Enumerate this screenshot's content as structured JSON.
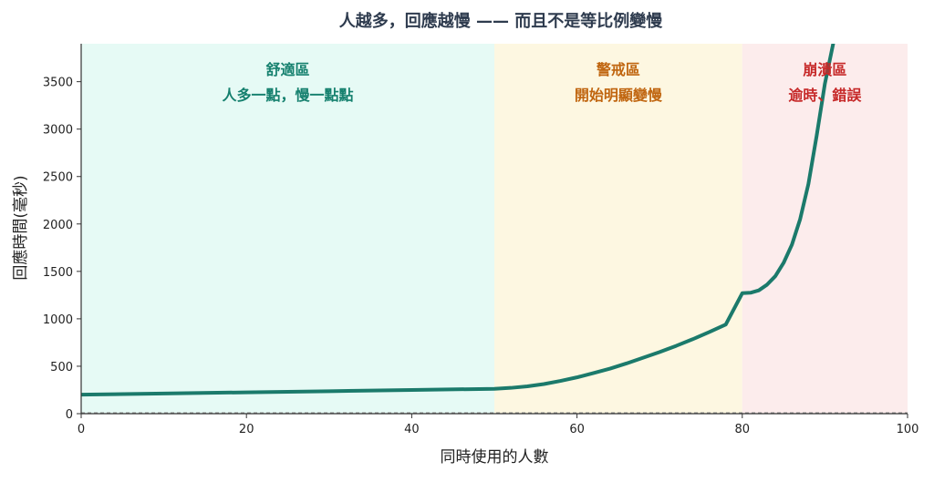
{
  "chart_data": {
    "type": "line",
    "title": "人越多，回應越慢 —— 而且不是等比例變慢",
    "xlabel": "同時使用的人數",
    "ylabel": "回應時間(毫秒)",
    "xlim": [
      0,
      100
    ],
    "ylim": [
      0,
      3900
    ],
    "xticks": [
      0,
      20,
      40,
      60,
      80,
      100
    ],
    "yticks": [
      0,
      500,
      1000,
      1500,
      2000,
      2500,
      3000,
      3500
    ],
    "grid": false,
    "line_color": "#1b7a6b",
    "zones": [
      {
        "name": "舒適區",
        "description": "人多一點，慢一點點",
        "x_range": [
          0,
          50
        ],
        "fill": "#e6faf5",
        "label_color": "#15806e"
      },
      {
        "name": "警戒區",
        "description": "開始明顯變慢",
        "x_range": [
          50,
          80
        ],
        "fill": "#fdf7e1",
        "label_color": "#c0650f"
      },
      {
        "name": "崩潰區",
        "description": "逾時、錯誤",
        "x_range": [
          80,
          100
        ],
        "fill": "#fcecec",
        "label_color": "#c62828"
      }
    ],
    "series": [
      {
        "x": [
          0,
          10,
          20,
          30,
          40,
          50,
          52,
          54,
          56,
          58,
          60,
          62,
          64,
          66,
          68,
          70,
          72,
          74,
          76,
          78,
          80,
          81,
          82,
          83,
          84,
          85,
          86,
          87,
          88,
          89,
          90,
          91
        ],
        "values": [
          200,
          212,
          225,
          237,
          250,
          262,
          272,
          288,
          312,
          345,
          383,
          428,
          475,
          530,
          590,
          650,
          715,
          785,
          860,
          940,
          1270,
          1275,
          1300,
          1360,
          1450,
          1590,
          1780,
          2050,
          2420,
          2930,
          3480,
          3900
        ]
      }
    ]
  }
}
